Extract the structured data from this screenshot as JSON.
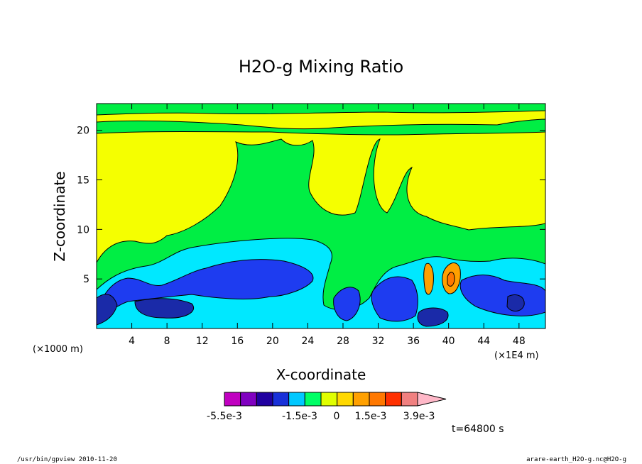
{
  "chart_data": {
    "type": "heatmap",
    "title": "H2O-g Mixing Ratio",
    "xlabel": "X-coordinate",
    "ylabel": "Z-coordinate",
    "x_unit_left": "(×1000 m)",
    "x_unit_right": "(×1E4 m)",
    "xlim": [
      0,
      51
    ],
    "ylim": [
      0,
      22.7
    ],
    "x_ticks": [
      4,
      8,
      12,
      16,
      20,
      24,
      28,
      32,
      36,
      40,
      44,
      48
    ],
    "y_ticks": [
      5,
      10,
      15,
      20
    ],
    "colorbar": {
      "colors": [
        "#c000c0",
        "#8000c0",
        "#2000a0",
        "#1830d8",
        "#00c8ff",
        "#00ff66",
        "#e0ff00",
        "#ffd800",
        "#ffa000",
        "#ff7800",
        "#ff3000",
        "#f08080",
        "#ffb8c8"
      ],
      "labels": [
        "-5.5e-3",
        "-1.5e-3",
        "0",
        "1.5e-3",
        "3.9e-3"
      ]
    },
    "time_label": "t=64800 s",
    "regions": [
      {
        "level": "yellow",
        "color": "#f5ff00",
        "description": "background"
      },
      {
        "level": "green",
        "color": "#00ee44"
      },
      {
        "level": "cyan",
        "color": "#00e8ff"
      },
      {
        "level": "blue",
        "color": "#1e3cf0"
      },
      {
        "level": "dark-blue",
        "color": "#1a2aa8"
      },
      {
        "level": "orange",
        "color": "#ffa000"
      }
    ]
  },
  "footer": {
    "left": "/usr/bin/gpview   2010-11-20",
    "right": "arare-earth_H2O-g.nc@H2O-g"
  }
}
